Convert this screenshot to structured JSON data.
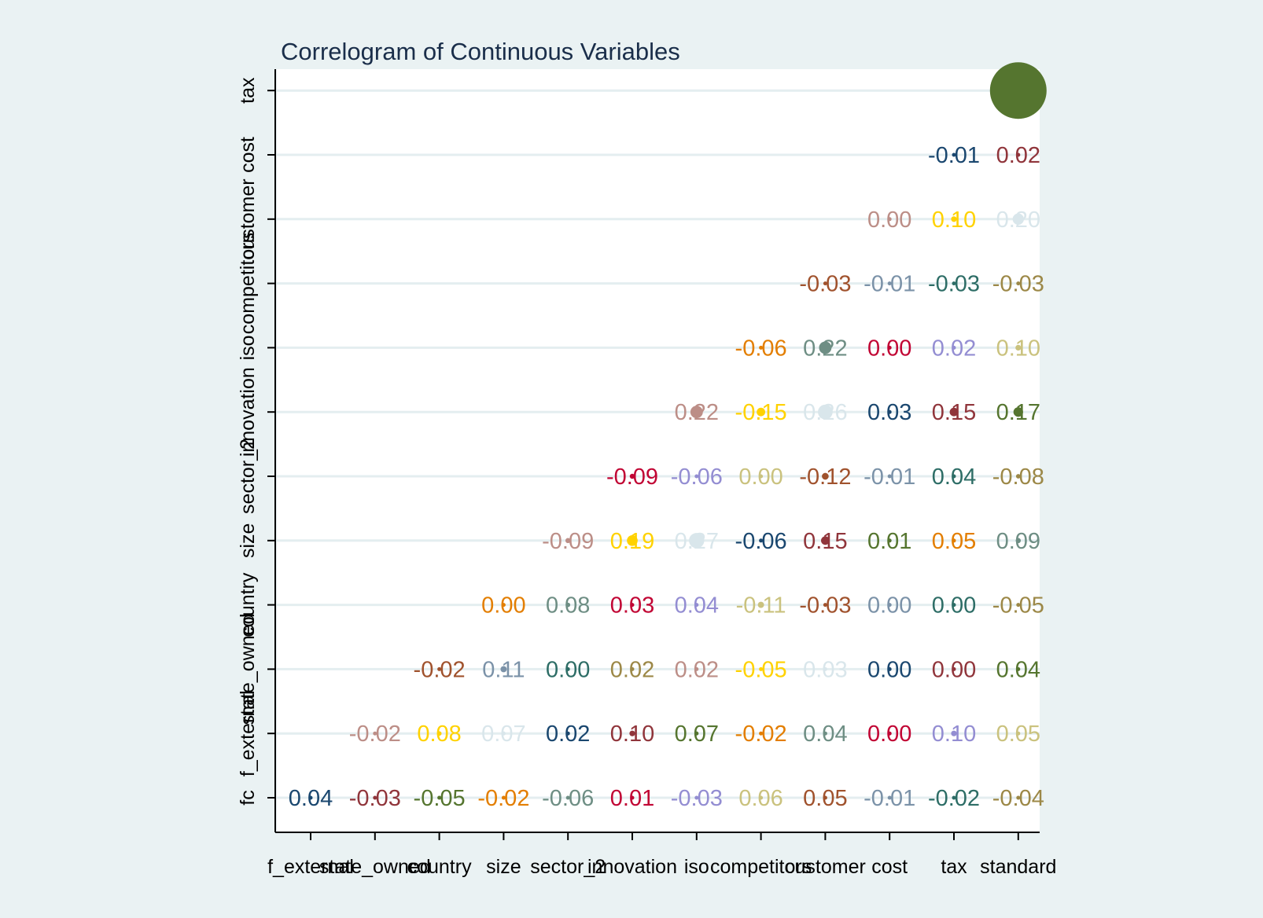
{
  "chart_data": {
    "type": "scatter",
    "subtype": "correlogram",
    "title": "Correlogram of Continuous Variables",
    "xlabel": "",
    "ylabel": "",
    "grid": true,
    "legend": "none",
    "x_categories": [
      "f_external",
      "state_owned",
      "country",
      "size",
      "sector_2",
      "innovation",
      "iso",
      "competitors",
      "customer",
      "cost",
      "tax",
      "standard"
    ],
    "y_categories": [
      "fc",
      "f_external",
      "state_owned",
      "country",
      "size",
      "sector_2",
      "innovation",
      "iso",
      "competitors",
      "customer",
      "cost",
      "tax"
    ],
    "colors": [
      "#1a476f",
      "#90353b",
      "#55752f",
      "#e37e00",
      "#6e8e84",
      "#c10534",
      "#938dd2",
      "#cac27e",
      "#a0522d",
      "#7b92a8",
      "#2d6d66",
      "#9c8847",
      "#bc8e87",
      "#ffd200",
      "#d9e6eb"
    ],
    "rows": [
      {
        "y": "fc",
        "values": [
          "0.04",
          "-0.03",
          "-0.05",
          "-0.02",
          "-0.06",
          "0.01",
          "-0.03",
          "0.06",
          "0.05",
          "-0.01",
          "-0.02",
          "-0.04"
        ],
        "colors": [
          "#1a476f",
          "#90353b",
          "#55752f",
          "#e37e00",
          "#6e8e84",
          "#c10534",
          "#938dd2",
          "#cac27e",
          "#a0522d",
          "#7b92a8",
          "#2d6d66",
          "#9c8847"
        ]
      },
      {
        "y": "f_external",
        "values": [
          "-0.02",
          "0.08",
          "0.07",
          "0.02",
          "0.10",
          "0.07",
          "-0.02",
          "0.04",
          "0.00",
          "0.10",
          "0.05"
        ],
        "colors": [
          "#bc8e87",
          "#ffd200",
          "#d9e6eb",
          "#1a476f",
          "#90353b",
          "#55752f",
          "#e37e00",
          "#6e8e84",
          "#c10534",
          "#938dd2",
          "#cac27e"
        ]
      },
      {
        "y": "state_owned",
        "values": [
          "-0.02",
          "0.11",
          "0.00",
          "0.02",
          "0.02",
          "-0.05",
          "0.03",
          "0.00",
          "0.00",
          "0.04"
        ],
        "colors": [
          "#a0522d",
          "#7b92a8",
          "#2d6d66",
          "#9c8847",
          "#bc8e87",
          "#ffd200",
          "#d9e6eb",
          "#1a476f",
          "#90353b",
          "#55752f"
        ]
      },
      {
        "y": "country",
        "values": [
          "0.00",
          "0.08",
          "0.03",
          "0.04",
          "-0.11",
          "-0.03",
          "0.00",
          "0.00",
          "-0.05"
        ],
        "colors": [
          "#e37e00",
          "#6e8e84",
          "#c10534",
          "#938dd2",
          "#cac27e",
          "#a0522d",
          "#7b92a8",
          "#2d6d66",
          "#9c8847"
        ]
      },
      {
        "y": "size",
        "values": [
          "-0.09",
          "0.19",
          "0.27",
          "-0.06",
          "0.15",
          "0.01",
          "0.05",
          "0.09"
        ],
        "colors": [
          "#bc8e87",
          "#ffd200",
          "#d9e6eb",
          "#1a476f",
          "#90353b",
          "#55752f",
          "#e37e00",
          "#6e8e84"
        ]
      },
      {
        "y": "sector_2",
        "values": [
          "-0.09",
          "-0.06",
          "0.00",
          "-0.12",
          "-0.01",
          "0.04",
          "-0.08"
        ],
        "colors": [
          "#c10534",
          "#938dd2",
          "#cac27e",
          "#a0522d",
          "#7b92a8",
          "#2d6d66",
          "#9c8847"
        ]
      },
      {
        "y": "innovation",
        "values": [
          "0.22",
          "-0.15",
          "0.26",
          "0.03",
          "0.15",
          "0.17"
        ],
        "colors": [
          "#bc8e87",
          "#ffd200",
          "#d9e6eb",
          "#1a476f",
          "#90353b",
          "#55752f"
        ]
      },
      {
        "y": "iso",
        "values": [
          "-0.06",
          "0.22",
          "0.00",
          "0.02",
          "0.10"
        ],
        "colors": [
          "#e37e00",
          "#6e8e84",
          "#c10534",
          "#938dd2",
          "#cac27e"
        ]
      },
      {
        "y": "competitors",
        "values": [
          "-0.03",
          "-0.01",
          "-0.03",
          "-0.03"
        ],
        "colors": [
          "#a0522d",
          "#7b92a8",
          "#2d6d66",
          "#9c8847"
        ]
      },
      {
        "y": "customer",
        "values": [
          "0.00",
          "0.10",
          "0.20"
        ],
        "colors": [
          "#bc8e87",
          "#ffd200",
          "#d9e6eb"
        ]
      },
      {
        "y": "cost",
        "values": [
          "-0.01",
          "0.02"
        ],
        "colors": [
          "#1a476f",
          "#90353b"
        ]
      },
      {
        "y": "tax",
        "values": [
          "1.00"
        ],
        "colors": [
          "#55752f"
        ],
        "labels_shown": [
          false
        ]
      }
    ]
  }
}
